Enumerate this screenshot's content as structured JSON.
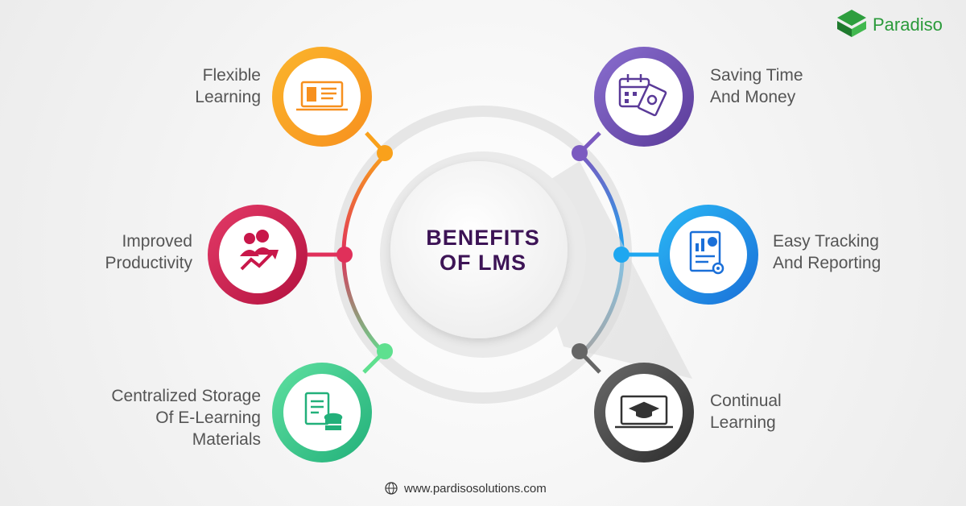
{
  "brand": {
    "name": "Paradiso",
    "color": "#2e9e3e",
    "logo_icon": "paradiso-logo-icon"
  },
  "center": {
    "title_line1": "BENEFITS",
    "title_line2": "OF LMS",
    "title_color": "#3d1456"
  },
  "benefits": [
    {
      "id": "flexible",
      "lines": [
        "Flexible",
        "Learning"
      ],
      "icon": "laptop-book-icon",
      "color": "#f9a11b",
      "side": "left"
    },
    {
      "id": "productivity",
      "lines": [
        "Improved",
        "Productivity"
      ],
      "icon": "people-growth-icon",
      "color": "#d81b4a",
      "side": "left"
    },
    {
      "id": "storage",
      "lines": [
        "Centralized Storage",
        "Of E-Learning",
        "Materials"
      ],
      "icon": "document-database-icon",
      "color": "#3ec98e",
      "side": "left"
    },
    {
      "id": "saving",
      "lines": [
        "Saving Time",
        "And Money"
      ],
      "icon": "calendar-money-icon",
      "color": "#6a4aa8",
      "side": "right"
    },
    {
      "id": "tracking",
      "lines": [
        "Easy Tracking",
        "And Reporting"
      ],
      "icon": "report-gear-icon",
      "color": "#1e8fe0",
      "side": "right"
    },
    {
      "id": "continual",
      "lines": [
        "Continual",
        "Learning"
      ],
      "icon": "graduation-laptop-icon",
      "color": "#4a4a4a",
      "side": "right"
    }
  ],
  "footer": {
    "url": "www.pardisosolutions.com",
    "icon": "globe-icon"
  }
}
